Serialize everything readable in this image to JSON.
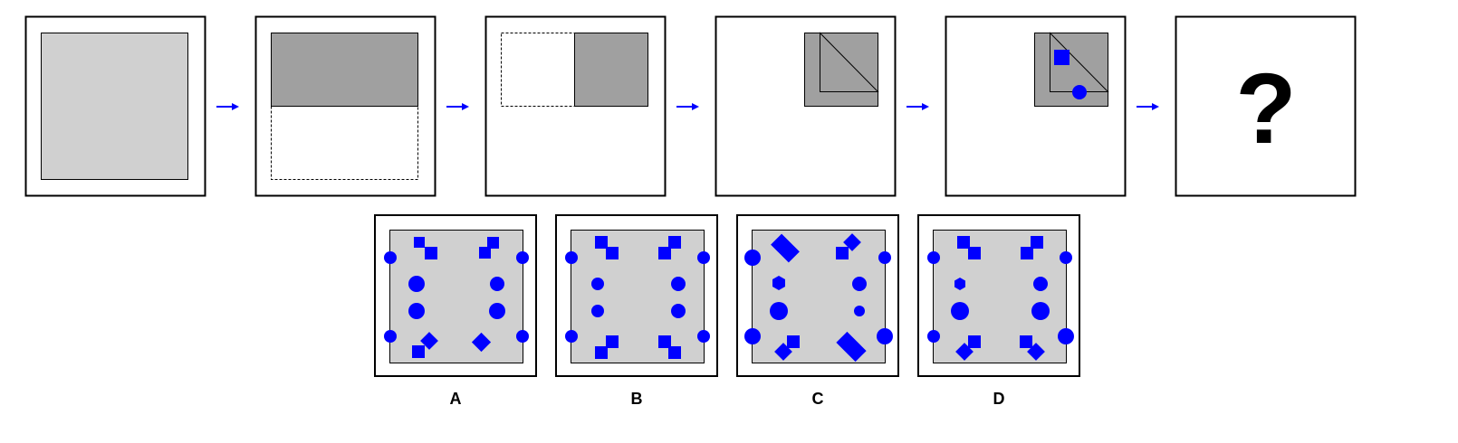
{
  "puzzle": {
    "question_mark": "?",
    "options": [
      "A",
      "B",
      "C",
      "D"
    ]
  },
  "colors": {
    "paper": "#d0d0d0",
    "folded": "#a0a0a0",
    "arrow": "#0000ff",
    "hole": "#0000ff",
    "frame": "#000000"
  },
  "icons": {
    "arrow": "right-arrow-icon",
    "hole_square": "square-hole-icon",
    "hole_circle": "circle-hole-icon"
  }
}
